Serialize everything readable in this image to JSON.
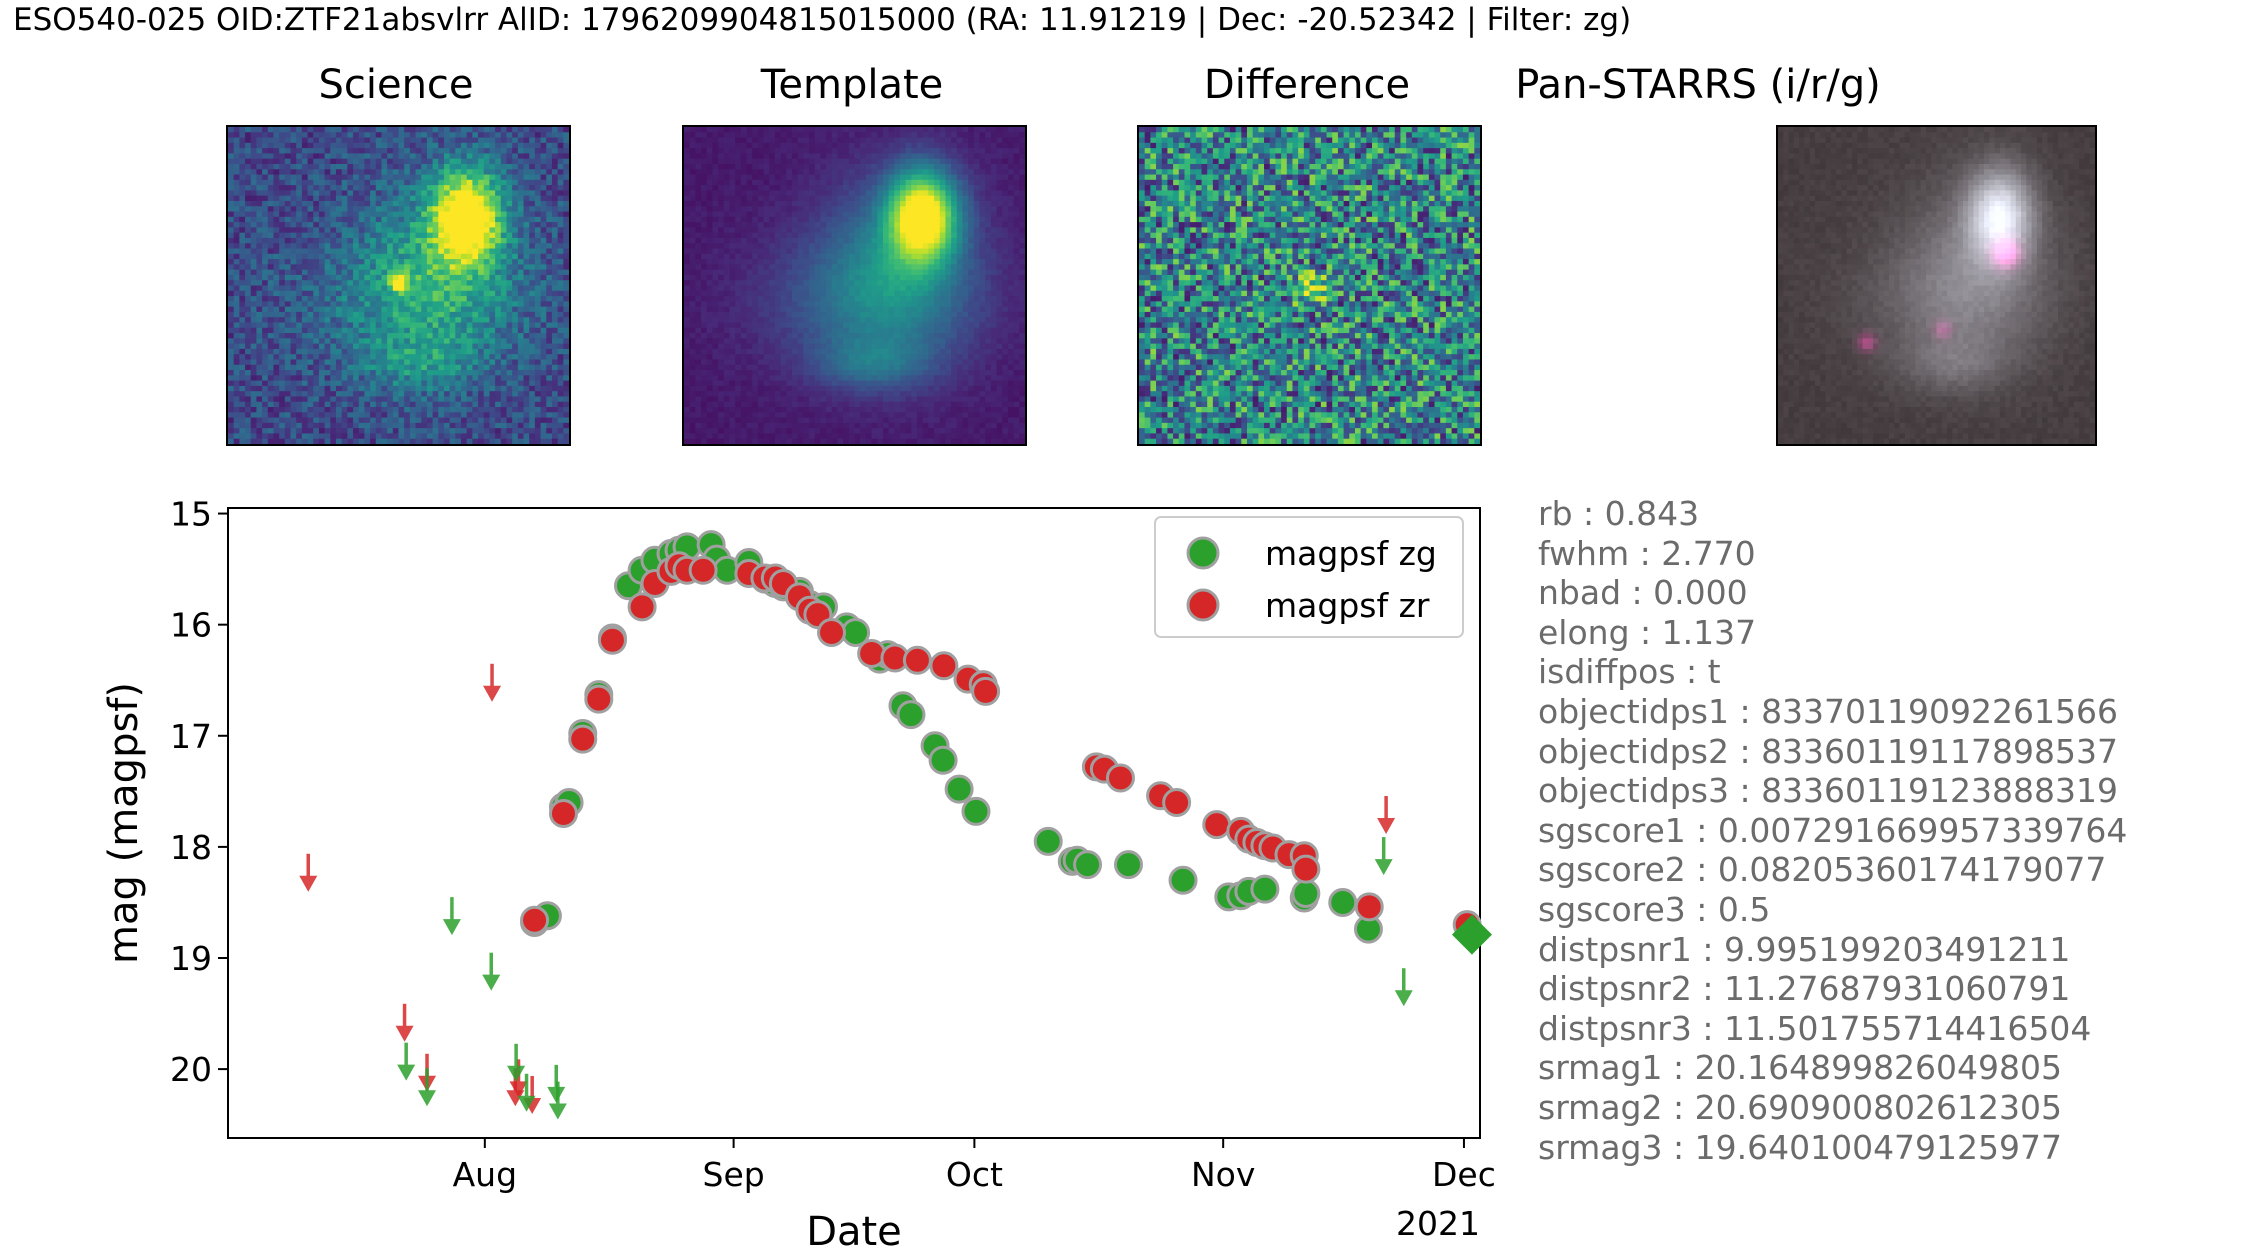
{
  "suptitle": "ESO540-025 OID:ZTF21absvlrr AlID: 1796209904815015000 (RA: 11.91219 | Dec: -20.52342 | Filter: zg)",
  "cutouts": [
    {
      "title": "Science",
      "kind": "science"
    },
    {
      "title": "Template",
      "kind": "template"
    },
    {
      "title": "Difference",
      "kind": "difference"
    },
    {
      "title": "Pan-STARRS (i/r/g)",
      "kind": "panstarrs"
    }
  ],
  "colors": {
    "zg": "#2ca02c",
    "zr": "#d62728",
    "edge": "#a0a0a0",
    "text_gray": "#6b6b6b"
  },
  "chart_data": {
    "type": "scatter",
    "xlabel": "Date",
    "ylabel": "mag (magpsf)",
    "x_units": "days since 2021-07-01",
    "xlim": [
      -1,
      155
    ],
    "ylim": [
      20.62,
      14.95
    ],
    "x_ticks": [
      {
        "value": 31,
        "label": "Aug"
      },
      {
        "value": 62,
        "label": "Sep"
      },
      {
        "value": 92,
        "label": "Oct"
      },
      {
        "value": 123,
        "label": "Nov"
      },
      {
        "value": 153,
        "label": "Dec"
      }
    ],
    "x_offset_label": "2021",
    "y_ticks": [
      15,
      16,
      17,
      18,
      19,
      20
    ],
    "legend": [
      {
        "label": "magpsf zg",
        "series": "zg"
      },
      {
        "label": "magpsf zr",
        "series": "zr"
      }
    ],
    "series": [
      {
        "name": "magpsf zg",
        "band": "zg",
        "x": [
          37.2,
          38.8,
          40.8,
          41.5,
          43.2,
          45.2,
          46.9,
          48.9,
          50.6,
          52.2,
          54.2,
          55.2,
          56.2,
          59.2,
          59.9,
          61.2,
          63.9,
          65.9,
          67.2,
          68.2,
          70.2,
          71.5,
          73.2,
          76.1,
          77.2,
          80.2,
          81.2,
          83.1,
          84.1,
          87.1,
          88.1,
          90.1,
          92.2,
          101.2,
          104.2,
          104.8,
          106.1,
          111.2,
          118.0,
          123.7,
          125.2,
          126.2,
          128.2,
          133.1,
          133.3,
          137.9,
          141.1
        ],
        "y": [
          18.68,
          18.62,
          17.64,
          17.6,
          16.98,
          16.63,
          16.12,
          15.65,
          15.51,
          15.42,
          15.36,
          15.33,
          15.3,
          15.28,
          15.41,
          15.51,
          15.44,
          15.59,
          15.63,
          15.66,
          15.7,
          15.82,
          15.84,
          16.02,
          16.07,
          16.31,
          16.27,
          16.73,
          16.81,
          17.09,
          17.22,
          17.48,
          17.68,
          17.95,
          18.13,
          18.12,
          18.16,
          18.16,
          18.3,
          18.45,
          18.44,
          18.4,
          18.38,
          18.46,
          18.42,
          18.5,
          18.74
        ]
      },
      {
        "name": "magpsf zr",
        "band": "zr",
        "x": [
          37.2,
          40.8,
          43.2,
          45.2,
          46.9,
          50.6,
          52.2,
          54.2,
          55.2,
          56.2,
          58.2,
          63.9,
          65.9,
          67.2,
          68.2,
          70.2,
          71.5,
          72.5,
          74.2,
          79.2,
          82.1,
          84.9,
          88.2,
          91.2,
          93.1,
          93.4,
          107.2,
          108.2,
          110.2,
          115.2,
          117.2,
          122.2,
          125.2,
          126.2,
          127.2,
          128.2,
          129.2,
          131.2,
          133.1,
          133.3,
          141.2,
          153.4
        ],
        "y": [
          18.66,
          17.7,
          17.03,
          16.67,
          16.14,
          15.84,
          15.63,
          15.52,
          15.47,
          15.51,
          15.51,
          15.54,
          15.58,
          15.58,
          15.63,
          15.75,
          15.87,
          15.91,
          16.07,
          16.26,
          16.3,
          16.32,
          16.37,
          16.49,
          16.54,
          16.6,
          17.28,
          17.3,
          17.38,
          17.54,
          17.6,
          17.8,
          17.86,
          17.93,
          17.96,
          17.99,
          18.01,
          18.07,
          18.08,
          18.2,
          18.54,
          18.7
        ]
      }
    ],
    "upper_limits": [
      {
        "band": "zr",
        "x": 9.0,
        "y": 18.35
      },
      {
        "band": "zr",
        "x": 21.0,
        "y": 19.7
      },
      {
        "band": "zr",
        "x": 23.8,
        "y": 20.15
      },
      {
        "band": "zr",
        "x": 31.9,
        "y": 16.64
      },
      {
        "band": "zr",
        "x": 34.8,
        "y": 20.28
      },
      {
        "band": "zr",
        "x": 35.2,
        "y": 20.2
      },
      {
        "band": "zr",
        "x": 36.9,
        "y": 20.35
      },
      {
        "band": "zr",
        "x": 143.3,
        "y": 17.83
      },
      {
        "band": "zg",
        "x": 21.2,
        "y": 20.05
      },
      {
        "band": "zg",
        "x": 23.8,
        "y": 20.28
      },
      {
        "band": "zg",
        "x": 26.9,
        "y": 18.74
      },
      {
        "band": "zg",
        "x": 31.8,
        "y": 19.24
      },
      {
        "band": "zg",
        "x": 34.9,
        "y": 20.06
      },
      {
        "band": "zg",
        "x": 36.2,
        "y": 20.33
      },
      {
        "band": "zg",
        "x": 39.9,
        "y": 20.25
      },
      {
        "band": "zg",
        "x": 40.1,
        "y": 20.4
      },
      {
        "band": "zg",
        "x": 143.0,
        "y": 18.2
      },
      {
        "band": "zg",
        "x": 145.5,
        "y": 19.38
      }
    ],
    "current_alert": {
      "band": "zg",
      "x": 154.0,
      "y": 18.79
    }
  },
  "features": [
    {
      "name": "rb",
      "value": "0.843"
    },
    {
      "name": "fwhm",
      "value": "2.770"
    },
    {
      "name": "nbad",
      "value": "0.000"
    },
    {
      "name": "elong",
      "value": "1.137"
    },
    {
      "name": "isdiffpos",
      "value": "t"
    },
    {
      "name": "objectidps1",
      "value": "83370119092261566"
    },
    {
      "name": "objectidps2",
      "value": "83360119117898537"
    },
    {
      "name": "objectidps3",
      "value": "83360119123888319"
    },
    {
      "name": "sgscore1",
      "value": "0.007291669957339764"
    },
    {
      "name": "sgscore2",
      "value": "0.08205360174179077"
    },
    {
      "name": "sgscore3",
      "value": "0.5"
    },
    {
      "name": "distpsnr1",
      "value": "9.995199203491211"
    },
    {
      "name": "distpsnr2",
      "value": "11.27687931060791"
    },
    {
      "name": "distpsnr3",
      "value": "11.501755714416504"
    },
    {
      "name": "srmag1",
      "value": "20.164899826049805"
    },
    {
      "name": "srmag2",
      "value": "20.690900802612305"
    },
    {
      "name": "srmag3",
      "value": "19.640100479125977"
    }
  ]
}
